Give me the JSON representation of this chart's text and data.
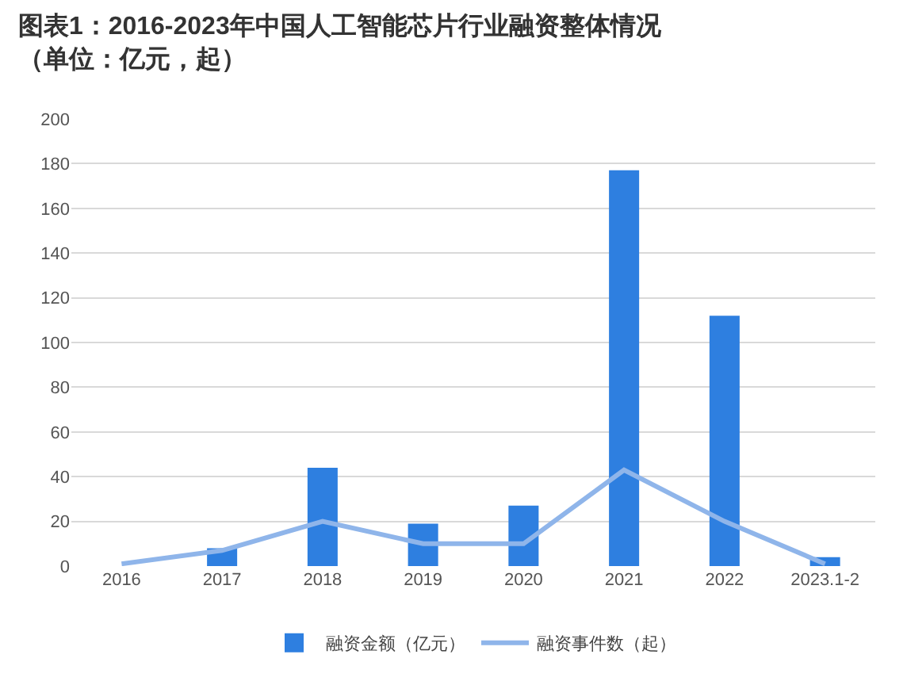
{
  "chart_data": {
    "type": "bar",
    "title": "图表1：2016-2023年中国人工智能芯片行业融资整体情况（单位：亿元，起）",
    "categories": [
      "2016",
      "2017",
      "2018",
      "2019",
      "2020",
      "2021",
      "2022",
      "2023.1-2"
    ],
    "series": [
      {
        "name": "融资金额（亿元）",
        "color": "#2e7fe0",
        "values": [
          0,
          8,
          44,
          19,
          27,
          177,
          112,
          4
        ]
      },
      {
        "name": "融资事件数（起）",
        "type": "line",
        "color": "#8fb5ea",
        "values": [
          1,
          7,
          20,
          10,
          10,
          43,
          20,
          1
        ]
      }
    ],
    "ylim": [
      0,
      200
    ],
    "yticks": [
      0,
      20,
      40,
      60,
      80,
      100,
      120,
      140,
      160,
      180,
      200
    ],
    "grid": "y",
    "legend": "bottom",
    "marker": "none"
  }
}
